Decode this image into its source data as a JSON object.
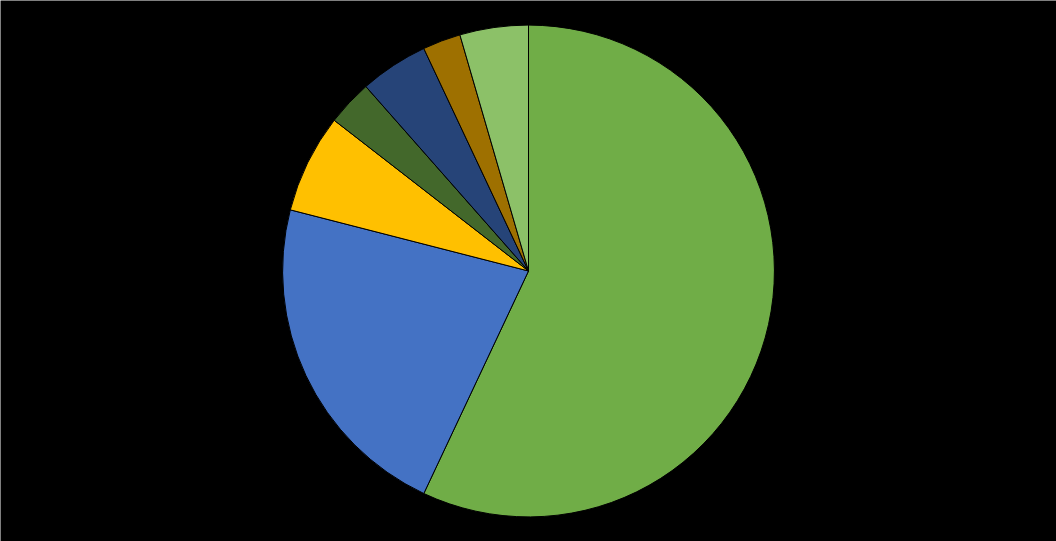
{
  "chart_data": {
    "type": "pie",
    "categories": [
      null,
      null,
      null,
      null,
      null,
      null,
      null
    ],
    "values": [
      57,
      22,
      6.5,
      3,
      4.5,
      2.5,
      4.5
    ],
    "colors": [
      "#70ad47",
      "#4472c4",
      "#ffc000",
      "#43682b",
      "#264478",
      "#9e7000",
      "#8cc168"
    ]
  }
}
